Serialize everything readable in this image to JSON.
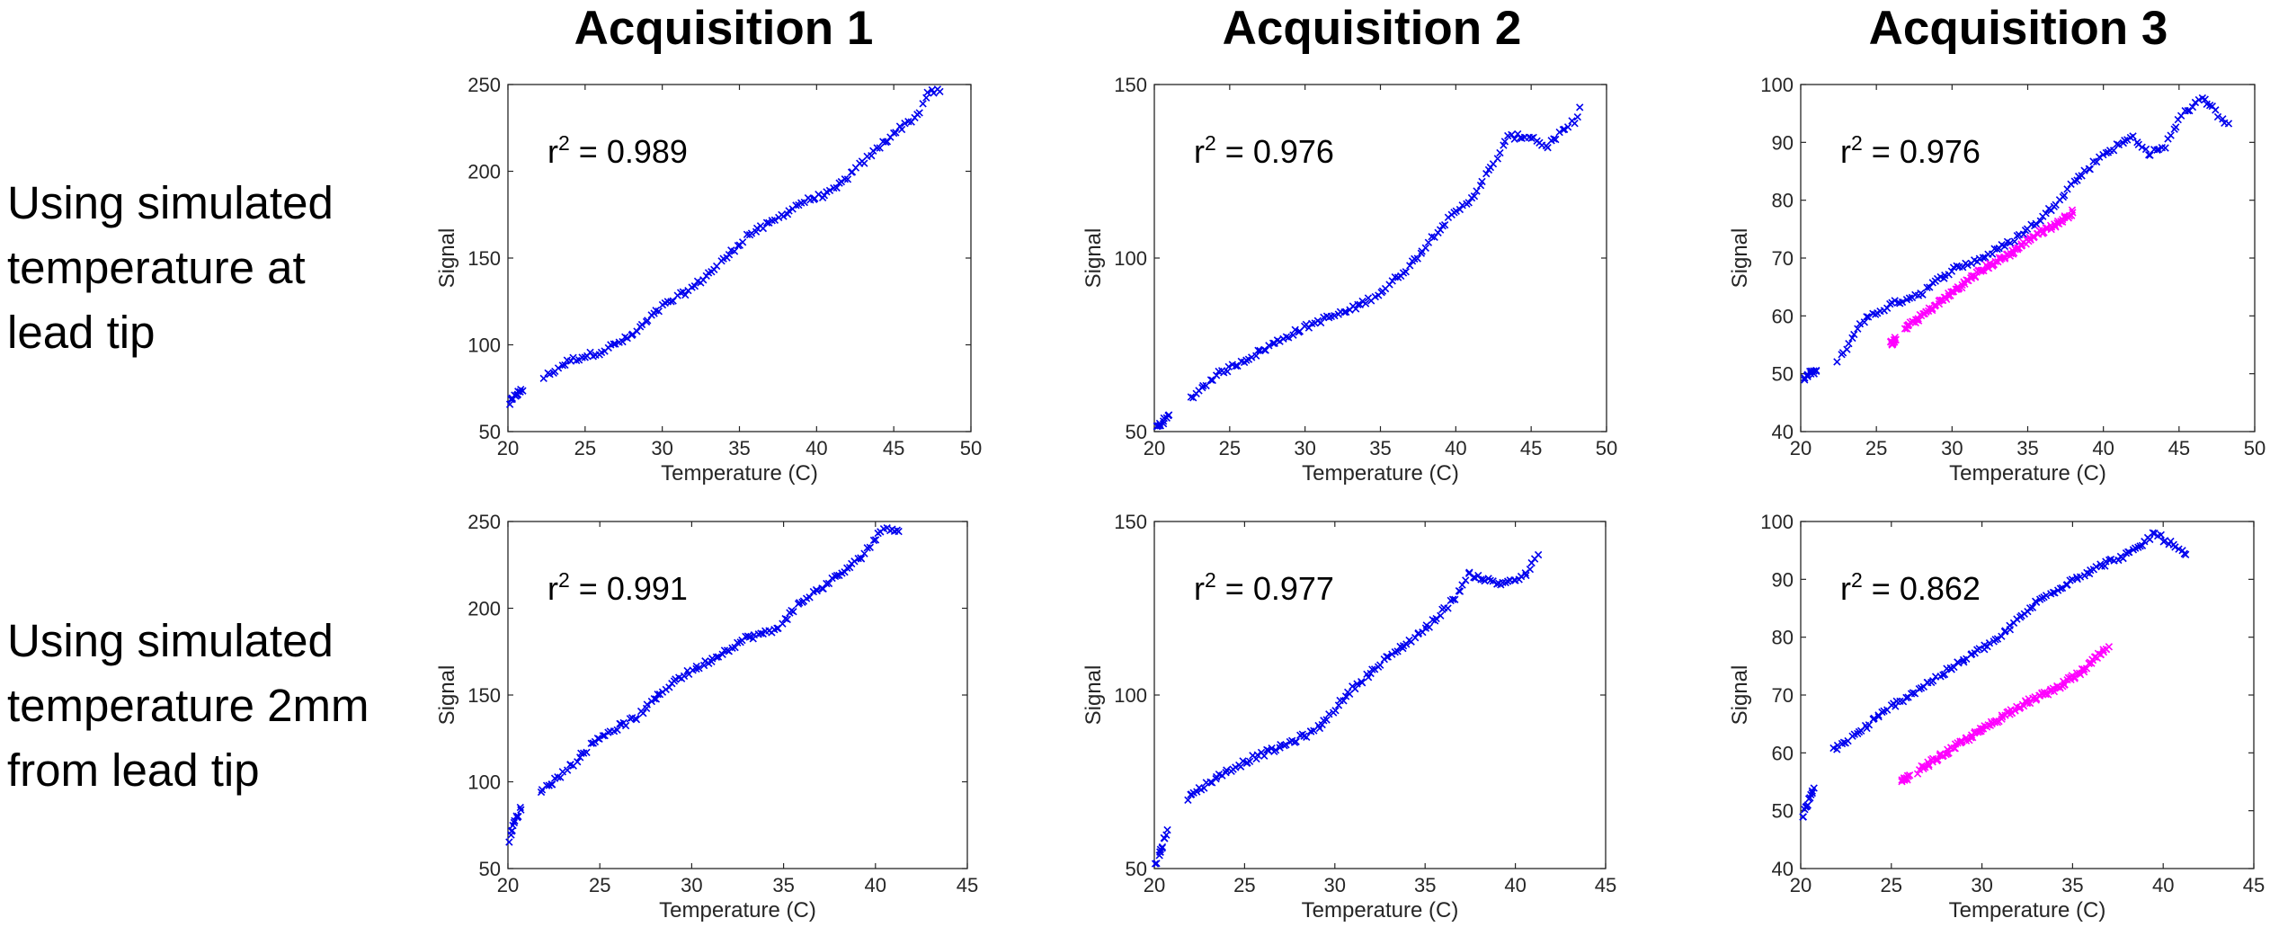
{
  "column_titles": [
    "Acquisition 1",
    "Acquisition 2",
    "Acquisition 3"
  ],
  "row_labels": [
    [
      "Using simulated",
      "temperature at",
      "lead tip"
    ],
    [
      "Using simulated",
      "temperature 2mm",
      "from lead tip"
    ]
  ],
  "colors": {
    "series_blue": "#0000ee",
    "series_magenta": "#ff00ff",
    "axis": "#262626"
  },
  "chart_data": [
    {
      "type": "scatter",
      "row": 0,
      "col": 0,
      "xlabel": "Temperature (C)",
      "ylabel": "Signal",
      "xlim": [
        20,
        50
      ],
      "ylim": [
        50,
        250
      ],
      "xticks": [
        20,
        25,
        30,
        35,
        40,
        45,
        50
      ],
      "yticks": [
        50,
        100,
        150,
        200,
        250
      ],
      "annotation": {
        "prefix": "r",
        "sup": "2",
        "value": " = 0.989"
      },
      "series": [
        {
          "color": "series_blue",
          "curve": [
            [
              20.1,
              66
            ],
            [
              20.6,
              72
            ],
            [
              22.5,
              82
            ],
            [
              24,
              91
            ],
            [
              26,
              96
            ],
            [
              28,
              105
            ],
            [
              30,
              122
            ],
            [
              32,
              133
            ],
            [
              34,
              149
            ],
            [
              35.5,
              163
            ],
            [
              37,
              170
            ],
            [
              39,
              182
            ],
            [
              41,
              188
            ],
            [
              43,
              205
            ],
            [
              45,
              222
            ],
            [
              46.5,
              232
            ],
            [
              47.3,
              246
            ],
            [
              48,
              246
            ]
          ]
        }
      ]
    },
    {
      "type": "scatter",
      "row": 0,
      "col": 1,
      "xlabel": "Temperature (C)",
      "ylabel": "Signal",
      "xlim": [
        20,
        50
      ],
      "ylim": [
        50,
        150
      ],
      "xticks": [
        20,
        25,
        30,
        35,
        40,
        45,
        50
      ],
      "yticks": [
        50,
        100,
        150
      ],
      "annotation": {
        "prefix": "r",
        "sup": "2",
        "value": " = 0.976"
      },
      "series": [
        {
          "color": "series_blue",
          "curve": [
            [
              20.1,
              51
            ],
            [
              20.6,
              53
            ],
            [
              22,
              58
            ],
            [
              24,
              66
            ],
            [
              27,
              73
            ],
            [
              29,
              78
            ],
            [
              31,
              82
            ],
            [
              33,
              85
            ],
            [
              35,
              90
            ],
            [
              37,
              98
            ],
            [
              39,
              109
            ],
            [
              41,
              117
            ],
            [
              42.5,
              127
            ],
            [
              43.5,
              135
            ],
            [
              45,
              135
            ],
            [
              46,
              132
            ],
            [
              47,
              136
            ],
            [
              48,
              140
            ],
            [
              48.2,
              143
            ]
          ]
        }
      ]
    },
    {
      "type": "scatter",
      "row": 0,
      "col": 2,
      "xlabel": "Temperature (C)",
      "ylabel": "Signal",
      "xlim": [
        20,
        50
      ],
      "ylim": [
        40,
        100
      ],
      "xticks": [
        20,
        25,
        30,
        35,
        40,
        45,
        50
      ],
      "yticks": [
        40,
        50,
        60,
        70,
        80,
        90,
        100
      ],
      "annotation": {
        "prefix": "r",
        "sup": "2",
        "value": " = 0.976"
      },
      "series": [
        {
          "color": "series_blue",
          "curve": [
            [
              20.2,
              49
            ],
            [
              20.6,
              50
            ],
            [
              22.5,
              52
            ],
            [
              24,
              59
            ],
            [
              26,
              62
            ],
            [
              28,
              64
            ],
            [
              30,
              68
            ],
            [
              32,
              70
            ],
            [
              34,
              73
            ],
            [
              36,
              77
            ],
            [
              38,
              83
            ],
            [
              40,
              88
            ],
            [
              42,
              91
            ],
            [
              43,
              88
            ],
            [
              44,
              89
            ],
            [
              45,
              94
            ],
            [
              46.5,
              98
            ],
            [
              47.5,
              95
            ],
            [
              48.2,
              93
            ]
          ]
        },
        {
          "color": "series_magenta",
          "curve": [
            [
              25.9,
              55
            ],
            [
              27,
              58
            ],
            [
              28,
              60
            ],
            [
              30,
              64
            ],
            [
              32,
              68
            ],
            [
              34,
              71
            ],
            [
              35.5,
              74
            ],
            [
              37,
              76
            ],
            [
              38,
              78
            ]
          ]
        }
      ]
    },
    {
      "type": "scatter",
      "row": 1,
      "col": 0,
      "xlabel": "Temperature (C)",
      "ylabel": "Signal",
      "xlim": [
        20,
        45
      ],
      "ylim": [
        50,
        250
      ],
      "xticks": [
        20,
        25,
        30,
        35,
        40,
        45
      ],
      "yticks": [
        50,
        100,
        150,
        200,
        250
      ],
      "annotation": {
        "prefix": "r",
        "sup": "2",
        "value": " = 0.991"
      },
      "series": [
        {
          "color": "series_blue",
          "curve": [
            [
              20.05,
              66
            ],
            [
              20.4,
              78
            ],
            [
              21,
              91
            ],
            [
              22,
              96
            ],
            [
              23.5,
              110
            ],
            [
              25,
              126
            ],
            [
              27,
              137
            ],
            [
              29,
              158
            ],
            [
              31,
              170
            ],
            [
              33,
              183
            ],
            [
              34.5,
              187
            ],
            [
              36,
              204
            ],
            [
              37.5,
              215
            ],
            [
              39,
              227
            ],
            [
              40,
              240
            ],
            [
              40.5,
              247
            ],
            [
              41.3,
              245
            ]
          ]
        }
      ]
    },
    {
      "type": "scatter",
      "row": 1,
      "col": 1,
      "xlabel": "Temperature (C)",
      "ylabel": "Signal",
      "xlim": [
        20,
        45
      ],
      "ylim": [
        50,
        150
      ],
      "xticks": [
        20,
        25,
        30,
        35,
        40,
        45
      ],
      "yticks": [
        50,
        100,
        150
      ],
      "annotation": {
        "prefix": "r",
        "sup": "2",
        "value": " = 0.977"
      },
      "series": [
        {
          "color": "series_blue",
          "curve": [
            [
              20.1,
              51
            ],
            [
              20.4,
              56
            ],
            [
              21,
              66
            ],
            [
              22.5,
              73
            ],
            [
              24,
              78
            ],
            [
              25.5,
              82
            ],
            [
              27,
              85
            ],
            [
              29,
              90
            ],
            [
              31,
              102
            ],
            [
              33,
              111
            ],
            [
              35,
              119
            ],
            [
              36.5,
              127
            ],
            [
              37.5,
              135
            ],
            [
              39,
              132
            ],
            [
              40.5,
              134
            ],
            [
              41.2,
              140
            ]
          ]
        }
      ]
    },
    {
      "type": "scatter",
      "row": 1,
      "col": 2,
      "xlabel": "Temperature (C)",
      "ylabel": "Signal",
      "xlim": [
        20,
        45
      ],
      "ylim": [
        40,
        100
      ],
      "xticks": [
        20,
        25,
        30,
        35,
        40,
        45
      ],
      "yticks": [
        40,
        50,
        60,
        70,
        80,
        90,
        100
      ],
      "annotation": {
        "prefix": "r",
        "sup": "2",
        "value": " = 0.862"
      },
      "series": [
        {
          "color": "series_blue",
          "curve": [
            [
              20.1,
              49
            ],
            [
              20.5,
              52
            ],
            [
              21.5,
              60
            ],
            [
              23,
              63
            ],
            [
              25,
              68
            ],
            [
              27,
              72
            ],
            [
              29,
              76
            ],
            [
              31,
              80
            ],
            [
              33,
              86
            ],
            [
              35,
              90
            ],
            [
              37,
              93
            ],
            [
              38.5,
              95
            ],
            [
              39.5,
              98
            ],
            [
              40.5,
              96
            ],
            [
              41.3,
              94
            ]
          ]
        },
        {
          "color": "series_magenta",
          "curve": [
            [
              25.6,
              55
            ],
            [
              27,
              58
            ],
            [
              28.5,
              61
            ],
            [
              30,
              64
            ],
            [
              32,
              68
            ],
            [
              34,
              71
            ],
            [
              35.5,
              74
            ],
            [
              36.5,
              77
            ],
            [
              37,
              78
            ]
          ]
        }
      ]
    }
  ]
}
